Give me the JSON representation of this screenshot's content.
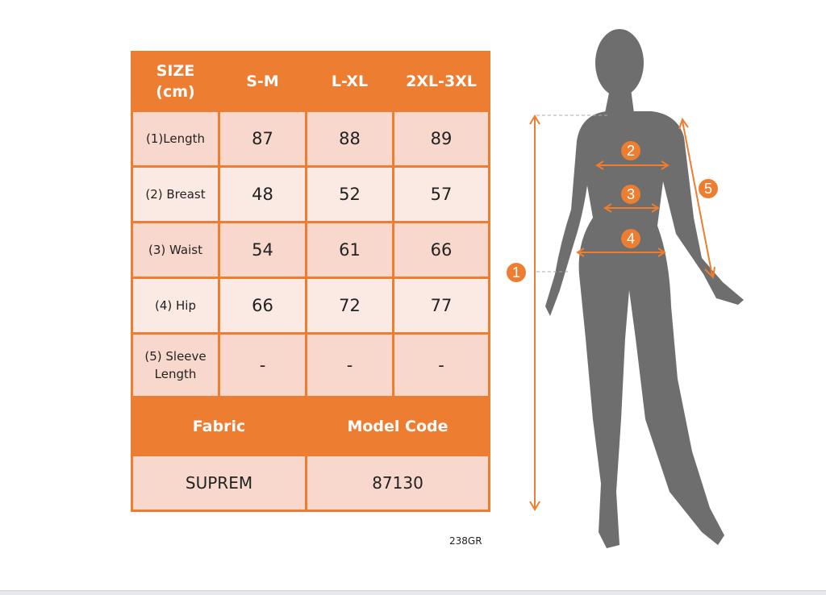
{
  "table": {
    "header": [
      "SIZE\n(cm)",
      "S-M",
      "L-XL",
      "2XL-3XL"
    ],
    "header_line1": "SIZE",
    "header_line2": "(cm)",
    "rows": [
      {
        "label": "(1)Length",
        "values": [
          "87",
          "88",
          "89"
        ]
      },
      {
        "label": "(2) Breast",
        "values": [
          "48",
          "52",
          "57"
        ]
      },
      {
        "label": "(3) Waist",
        "values": [
          "54",
          "61",
          "66"
        ]
      },
      {
        "label": "(4) Hip",
        "values": [
          "66",
          "72",
          "77"
        ]
      },
      {
        "label_line1": "(5) Sleeve",
        "label_line2": "Length",
        "values": [
          "-",
          "-",
          "-"
        ]
      }
    ],
    "footer_headers": [
      "Fabric",
      "Model Code"
    ],
    "footer_values": [
      "SUPREM",
      "87130"
    ]
  },
  "code": "238GR",
  "figure": {
    "markers": [
      "1",
      "2",
      "3",
      "4",
      "5"
    ]
  },
  "colors": {
    "accent": "#ED7D31",
    "cell_dark": "#F8D8CD",
    "cell_light": "#FBEAE4",
    "silhouette": "#6E6E6E"
  }
}
